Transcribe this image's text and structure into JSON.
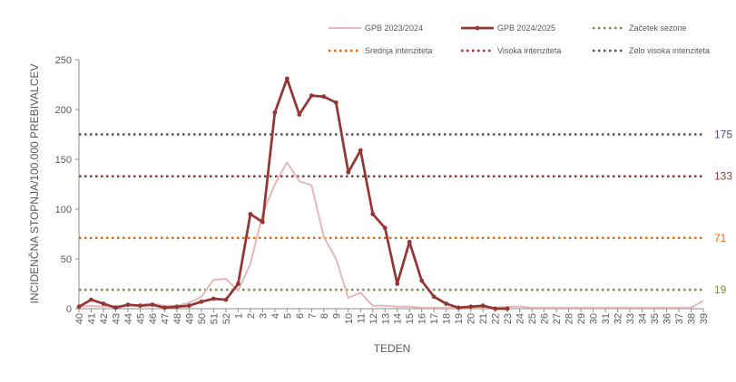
{
  "chart_data": {
    "type": "line",
    "xlabel": "TEDEN",
    "ylabel": "INCIDENČNA STOPNJA/100.000 PREBIVALCEV",
    "ylim": [
      0,
      250
    ],
    "yticks": [
      "0",
      "50",
      "100",
      "150",
      "200",
      "250"
    ],
    "categories": [
      "40",
      "41",
      "42",
      "43",
      "44",
      "45",
      "46",
      "47",
      "48",
      "49",
      "50",
      "51",
      "52",
      "1",
      "2",
      "3",
      "4",
      "5",
      "6",
      "7",
      "8",
      "9",
      "10",
      "11",
      "12",
      "13",
      "14",
      "15",
      "16",
      "17",
      "18",
      "19",
      "20",
      "21",
      "22",
      "23",
      "24",
      "25",
      "26",
      "27",
      "28",
      "29",
      "30",
      "31",
      "32",
      "33",
      "34",
      "35",
      "36",
      "37",
      "38",
      "39"
    ],
    "series": [
      {
        "name": "GPB 2023/2024",
        "color": "#e6b8b7",
        "markers": false,
        "values": [
          2,
          3,
          2,
          3,
          3,
          4,
          5,
          3,
          3,
          6,
          12,
          29,
          30,
          18,
          45,
          95,
          125,
          147,
          128,
          124,
          72,
          50,
          11,
          16,
          3,
          3,
          2,
          2,
          1,
          1,
          1,
          1,
          1,
          1,
          1,
          2,
          2,
          1,
          1,
          1,
          1,
          1,
          1,
          1,
          1,
          1,
          1,
          1,
          1,
          1,
          1,
          8
        ]
      },
      {
        "name": "GPB 2024/2025",
        "color": "#943634",
        "markers": true,
        "values": [
          2,
          9,
          5,
          1,
          4,
          3,
          4,
          1,
          2,
          3,
          7,
          10,
          9,
          25,
          95,
          87,
          197,
          231,
          195,
          214,
          213,
          207,
          137,
          159,
          95,
          81,
          25,
          67,
          28,
          12,
          5,
          1,
          2,
          3,
          0,
          0,
          null,
          null,
          null,
          null,
          null,
          null,
          null,
          null,
          null,
          null,
          null,
          null,
          null,
          null,
          null,
          null
        ]
      }
    ],
    "thresholds": [
      {
        "name": "Začetek sezone",
        "value": 19,
        "label": "19",
        "color": "#77933c"
      },
      {
        "name": "Srednja intenziteta",
        "value": 71,
        "label": "71",
        "color": "#e36c09"
      },
      {
        "name": "Visoka intenziteta",
        "value": 133,
        "label": "133",
        "color": "#953735"
      },
      {
        "name": "Zelo visoka intenziteta",
        "value": 175,
        "label": "175",
        "color": "#604a7b"
      }
    ],
    "grid": false,
    "legend": "top"
  }
}
